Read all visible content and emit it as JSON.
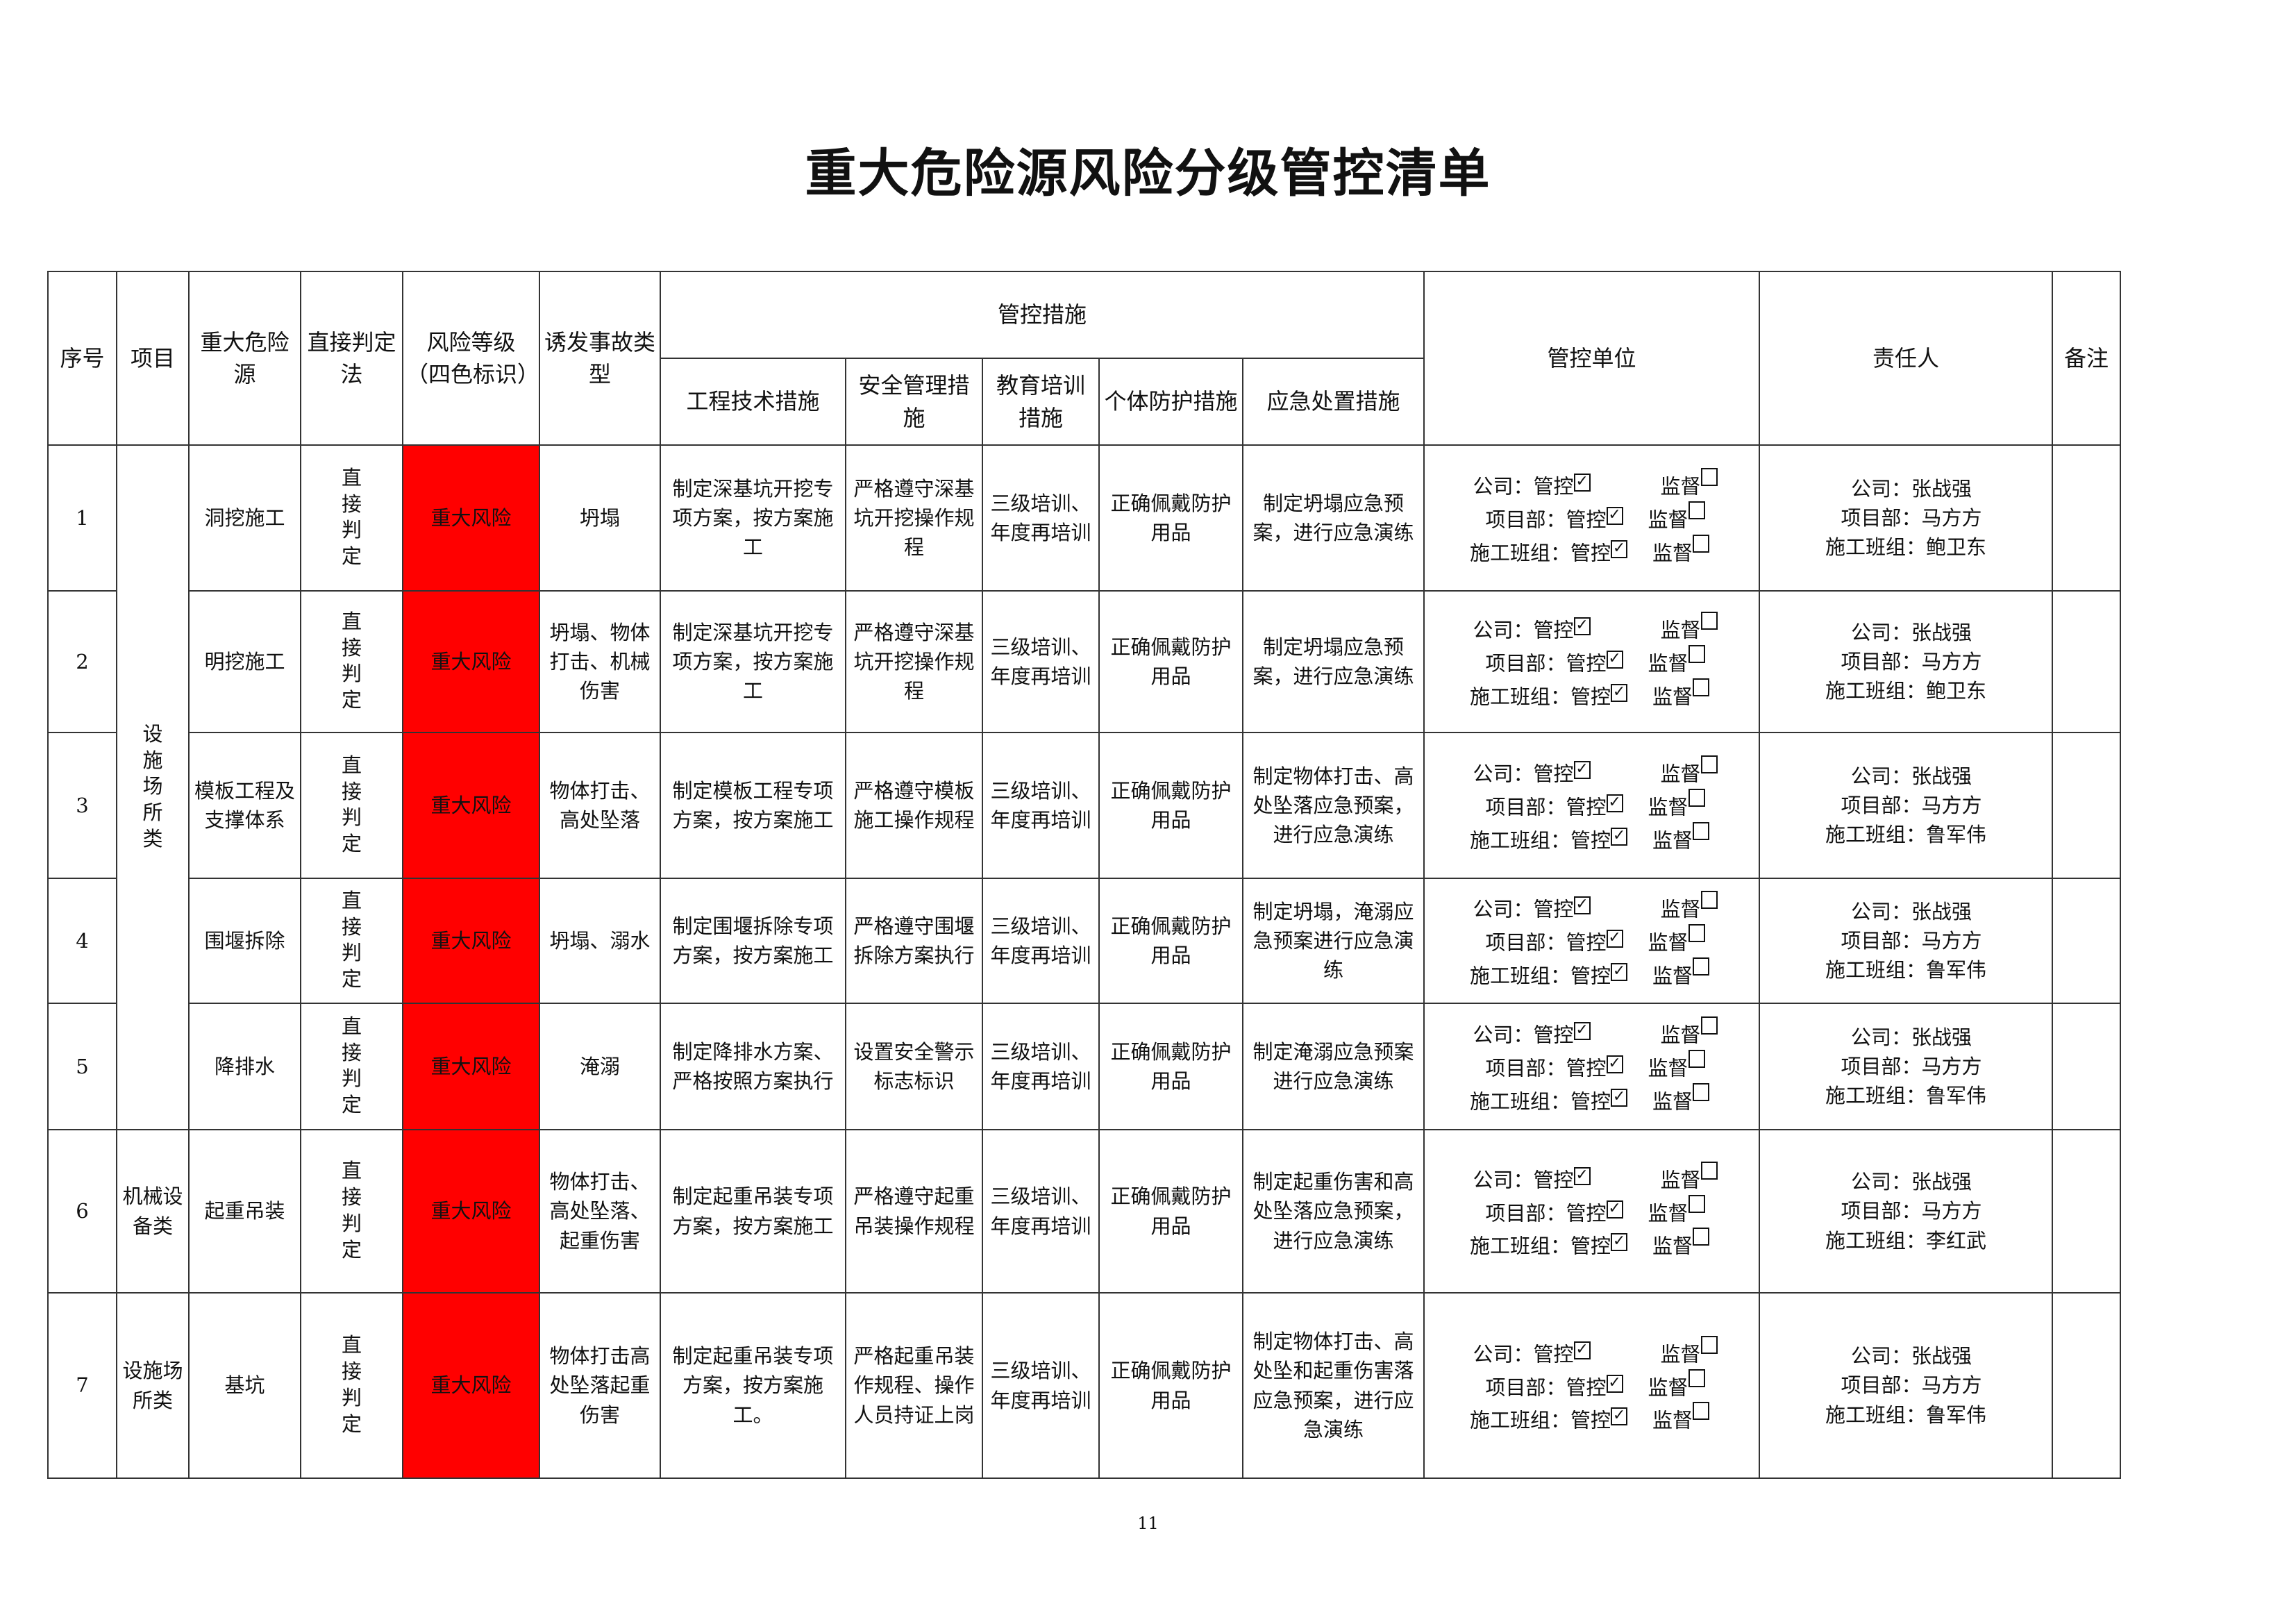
{
  "title": "重大危险源风险分级管控清单",
  "headers": {
    "seq": "序号",
    "project": "项目",
    "hazard": "重大危险源",
    "method": "直接判定法",
    "risk_level": "风险等级（四色标识）",
    "accident": "诱发事故类型",
    "measures": "管控措施",
    "eng": "工程技术措施",
    "safety": "安全管理措施",
    "edu": "教育培训措施",
    "ppe": "个体防护措施",
    "emergency": "应急处置措施",
    "unit": "管控单位",
    "person": "责任人",
    "remark": "备注"
  },
  "projects": [
    {
      "label": "设施场所类",
      "rows": 5
    },
    {
      "label": "机械设备类",
      "rows": 1
    },
    {
      "label": "设施场所类",
      "rows": 1
    }
  ],
  "colors": {
    "risk_major": "#FF0000"
  },
  "unit_labels": {
    "company": "公司：",
    "project": "项目部：",
    "team": "施工班组：",
    "control": "管控",
    "supervise": "监督"
  },
  "rows": [
    {
      "seq": "1",
      "hazard": "洞挖施工",
      "method": "直接判定",
      "risk": "重大风险",
      "accident": "坍塌",
      "eng": "制定深基坑开挖专项方案，按方案施工",
      "safety": "严格遵守深基坑开挖操作规程",
      "edu": "三级培训、年度再培训",
      "ppe": "正确佩戴防护用品",
      "emergency": "制定坍塌应急预案，进行应急演练",
      "company": "公司：张战强",
      "project_mgr": "项目部：马方方",
      "team": "施工班组：鲍卫东",
      "control_checked": true,
      "supervise_checked": false
    },
    {
      "seq": "2",
      "hazard": "明挖施工",
      "method": "直接判定",
      "risk": "重大风险",
      "accident": "坍塌、物体打击、机械伤害",
      "eng": "制定深基坑开挖专项方案，按方案施工",
      "safety": "严格遵守深基坑开挖操作规程",
      "edu": "三级培训、年度再培训",
      "ppe": "正确佩戴防护用品",
      "emergency": "制定坍塌应急预案，进行应急演练",
      "company": "公司：张战强",
      "project_mgr": "项目部：马方方",
      "team": "施工班组：鲍卫东",
      "control_checked": true,
      "supervise_checked": false
    },
    {
      "seq": "3",
      "hazard": "模板工程及支撑体系",
      "method": "直接判定",
      "risk": "重大风险",
      "accident": "物体打击、高处坠落",
      "eng": "制定模板工程专项方案，按方案施工",
      "safety": "严格遵守模板施工操作规程",
      "edu": "三级培训、年度再培训",
      "ppe": "正确佩戴防护用品",
      "emergency": "制定物体打击、高处坠落应急预案，进行应急演练",
      "company": "公司：张战强",
      "project_mgr": "项目部：马方方",
      "team": "施工班组：鲁军伟",
      "control_checked": true,
      "supervise_checked": false
    },
    {
      "seq": "4",
      "hazard": "围堰拆除",
      "method": "直接判定",
      "risk": "重大风险",
      "accident": "坍塌、溺水",
      "eng": "制定围堰拆除专项方案，按方案施工",
      "safety": "严格遵守围堰拆除方案执行",
      "edu": "三级培训、年度再培训",
      "ppe": "正确佩戴防护用品",
      "emergency": "制定坍塌，淹溺应急预案进行应急演练",
      "company": "公司：张战强",
      "project_mgr": "项目部：马方方",
      "team": "施工班组：鲁军伟",
      "control_checked": true,
      "supervise_checked": false
    },
    {
      "seq": "5",
      "hazard": "降排水",
      "method": "直接判定",
      "risk": "重大风险",
      "accident": "淹溺",
      "eng": "制定降排水方案、严格按照方案执行",
      "safety": "设置安全警示标志标识",
      "edu": "三级培训、年度再培训",
      "ppe": "正确佩戴防护用品",
      "emergency": "制定淹溺应急预案进行应急演练",
      "company": "公司：张战强",
      "project_mgr": "项目部：马方方",
      "team": "施工班组：鲁军伟",
      "control_checked": true,
      "supervise_checked": false
    },
    {
      "seq": "6",
      "hazard": "起重吊装",
      "method": "直接判定",
      "risk": "重大风险",
      "accident": "物体打击、高处坠落、起重伤害",
      "eng": "制定起重吊装专项方案，按方案施工",
      "safety": "严格遵守起重吊装操作规程",
      "edu": "三级培训、年度再培训",
      "ppe": "正确佩戴防护用品",
      "emergency": "制定起重伤害和高处坠落应急预案，进行应急演练",
      "company": "公司：张战强",
      "project_mgr": "项目部：马方方",
      "team": "施工班组：李红武",
      "control_checked": true,
      "supervise_checked": false
    },
    {
      "seq": "7",
      "hazard": "基坑",
      "method": "直接判定",
      "risk": "重大风险",
      "accident": "物体打击高处坠落起重伤害",
      "eng": "制定起重吊装专项方案，按方案施工。",
      "safety": "严格起重吊装作规程、操作人员持证上岗",
      "edu": "三级培训、年度再培训",
      "ppe": "正确佩戴防护用品",
      "emergency": "制定物体打击、高处坠和起重伤害落应急预案，进行应急演练",
      "company": "公司：张战强",
      "project_mgr": "项目部：马方方",
      "team": "施工班组：鲁军伟",
      "control_checked": true,
      "supervise_checked": false
    }
  ],
  "page_number": "11"
}
